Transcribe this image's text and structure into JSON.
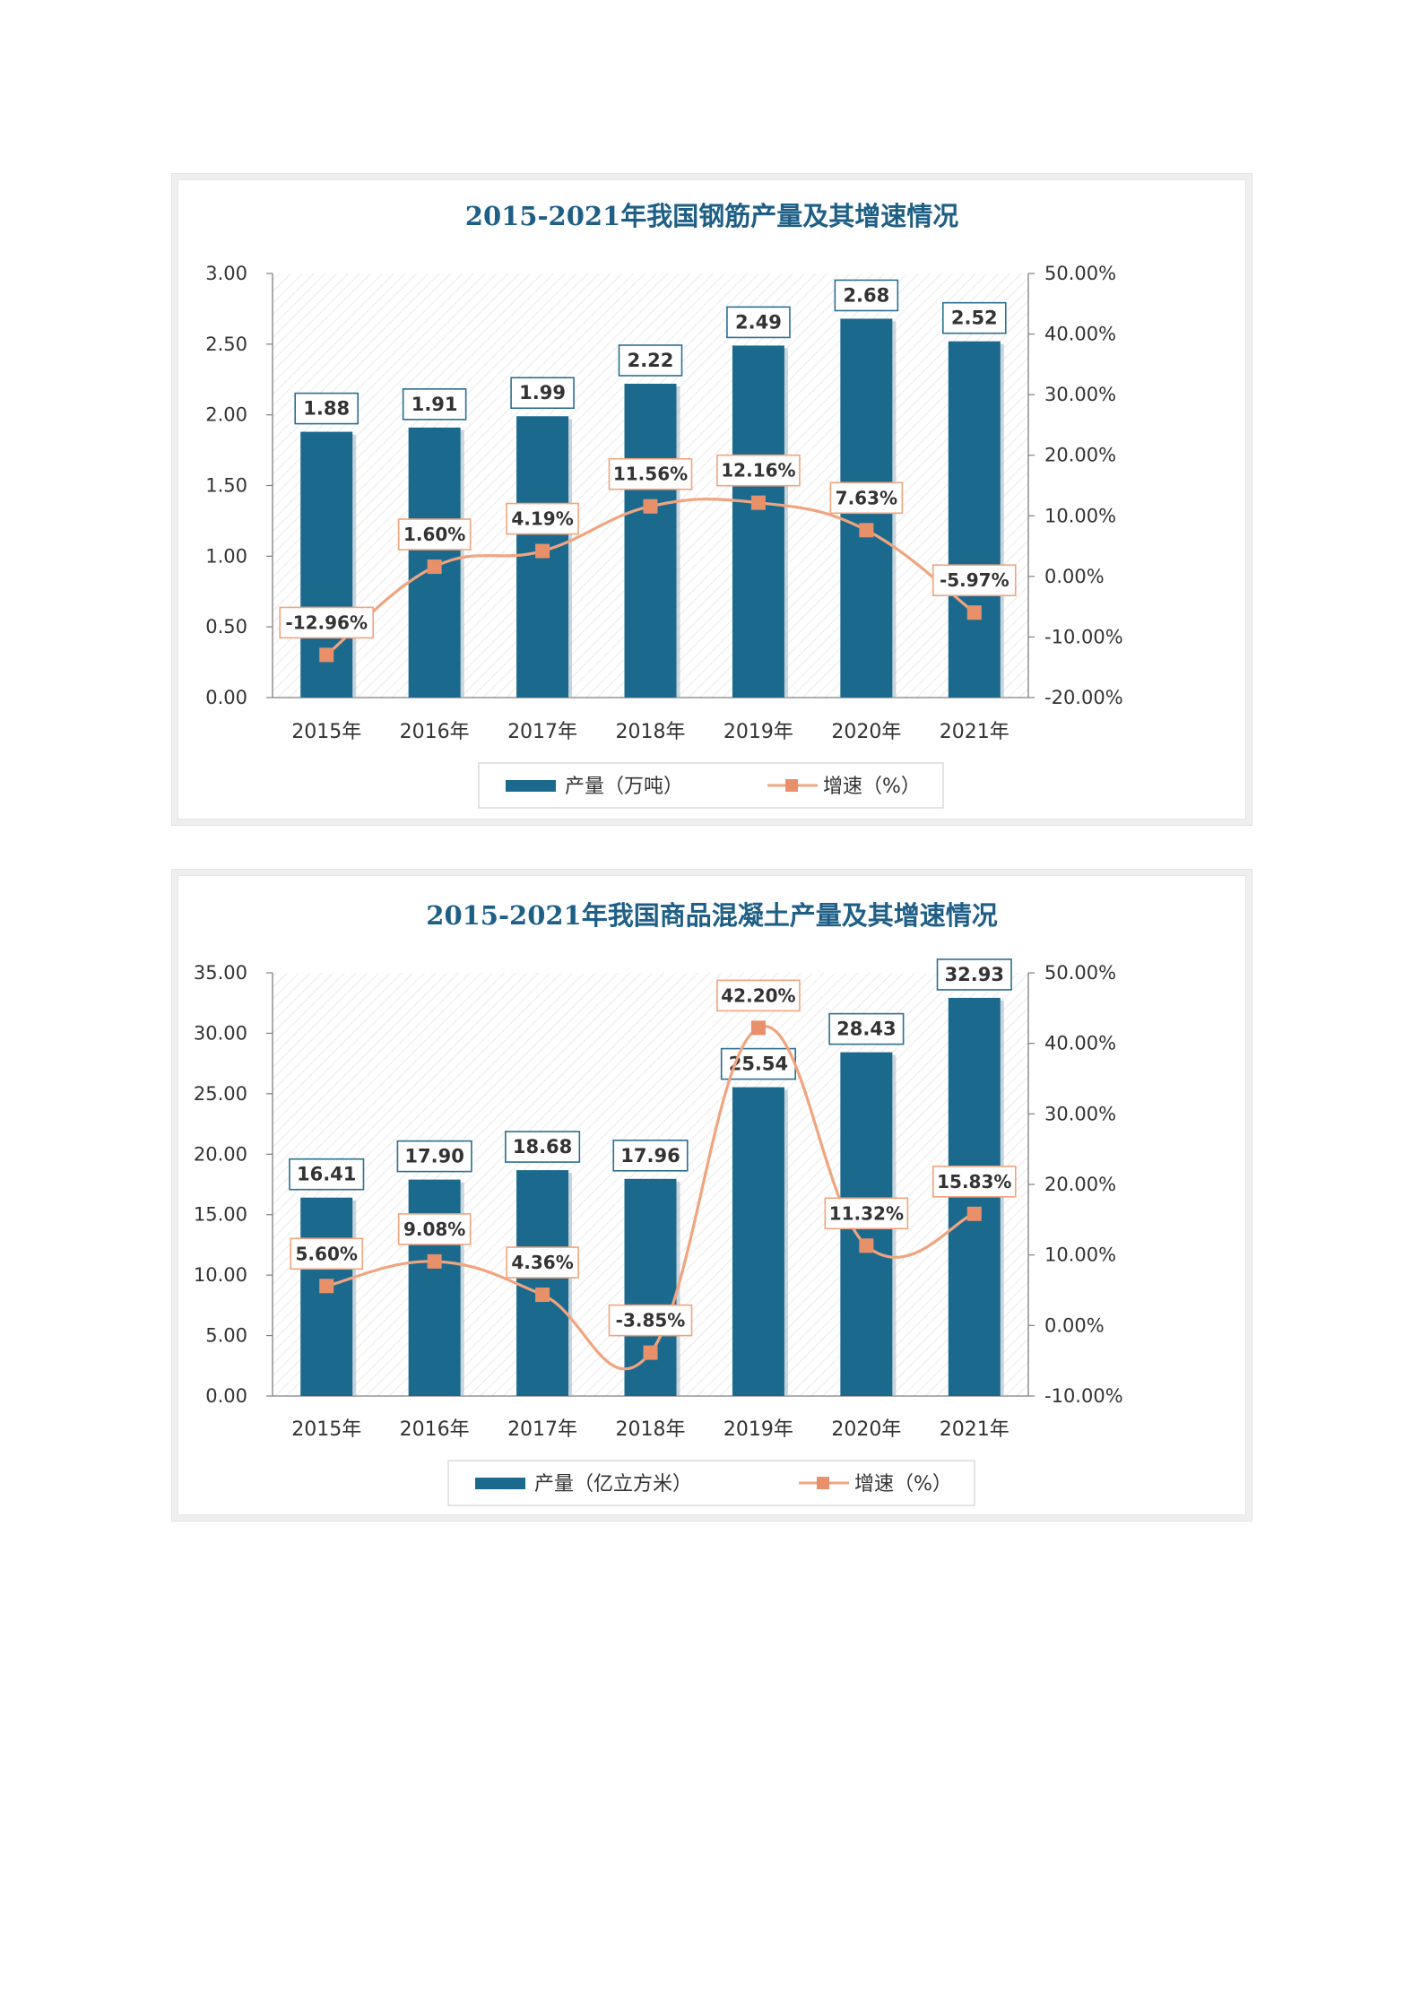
{
  "charts": [
    {
      "title": "2015-2021年我国钢筋产量及其增速情况",
      "legend": {
        "bar": "产量（万吨）",
        "line": "增速（%）"
      }
    },
    {
      "title": "2015-2021年我国商品混凝土产量及其增速情况",
      "legend": {
        "bar": "产量（亿立方米）",
        "line": "增速（%）"
      }
    }
  ],
  "chart_data": [
    {
      "type": "bar",
      "title": "2015-2021年我国钢筋产量及其增速情况",
      "categories": [
        "2015年",
        "2016年",
        "2017年",
        "2018年",
        "2019年",
        "2020年",
        "2021年"
      ],
      "series": [
        {
          "name": "产量（万吨）",
          "type": "bar",
          "axis": "left",
          "values": [
            1.88,
            1.91,
            1.99,
            2.22,
            2.49,
            2.68,
            2.52
          ],
          "labels": [
            "1.88",
            "1.91",
            "1.99",
            "2.22",
            "2.49",
            "2.68",
            "2.52"
          ]
        },
        {
          "name": "增速（%）",
          "type": "line",
          "axis": "right",
          "values": [
            -12.96,
            1.6,
            4.19,
            11.56,
            12.16,
            7.63,
            -5.97
          ],
          "labels": [
            "-12.96%",
            "1.60%",
            "4.19%",
            "11.56%",
            "12.16%",
            "7.63%",
            "-5.97%"
          ]
        }
      ],
      "y_left": {
        "min": 0,
        "max": 3,
        "step": 0.5,
        "ticks": [
          "0.00",
          "0.50",
          "1.00",
          "1.50",
          "2.00",
          "2.50",
          "3.00"
        ]
      },
      "y_right": {
        "min": -20,
        "max": 50,
        "step": 10,
        "ticks": [
          "-20.00%",
          "-10.00%",
          "0.00%",
          "10.00%",
          "20.00%",
          "30.00%",
          "40.00%",
          "50.00%"
        ]
      },
      "legend_position": "bottom",
      "grid": false,
      "colors": {
        "bar": "#1b6a8e",
        "line": "#f0a47f",
        "marker": "#e8906a",
        "title": "#1f5f86",
        "bar_label_border": "#2b6e8f",
        "line_label_border": "#f0a47f"
      }
    },
    {
      "type": "bar",
      "title": "2015-2021年我国商品混凝土产量及其增速情况",
      "categories": [
        "2015年",
        "2016年",
        "2017年",
        "2018年",
        "2019年",
        "2020年",
        "2021年"
      ],
      "series": [
        {
          "name": "产量（亿立方米）",
          "type": "bar",
          "axis": "left",
          "values": [
            16.41,
            17.9,
            18.68,
            17.96,
            25.54,
            28.43,
            32.93
          ],
          "labels": [
            "16.41",
            "17.90",
            "18.68",
            "17.96",
            "25.54",
            "28.43",
            "32.93"
          ]
        },
        {
          "name": "增速（%）",
          "type": "line",
          "axis": "right",
          "values": [
            5.6,
            9.08,
            4.36,
            -3.85,
            42.2,
            11.32,
            15.83
          ],
          "labels": [
            "5.60%",
            "9.08%",
            "4.36%",
            "-3.85%",
            "42.20%",
            "11.32%",
            "15.83%"
          ]
        }
      ],
      "y_left": {
        "min": 0,
        "max": 35,
        "step": 5,
        "ticks": [
          "0.00",
          "5.00",
          "10.00",
          "15.00",
          "20.00",
          "25.00",
          "30.00",
          "35.00"
        ]
      },
      "y_right": {
        "min": -10,
        "max": 50,
        "step": 10,
        "ticks": [
          "-10.00%",
          "0.00%",
          "10.00%",
          "20.00%",
          "30.00%",
          "40.00%",
          "50.00%"
        ]
      },
      "legend_position": "bottom",
      "grid": false,
      "colors": {
        "bar": "#1b6a8e",
        "line": "#f0a47f",
        "marker": "#e8906a",
        "title": "#1f5f86",
        "bar_label_border": "#2b6e8f",
        "line_label_border": "#f0a47f"
      }
    }
  ]
}
